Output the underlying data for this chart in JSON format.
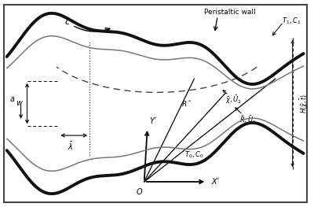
{
  "fig_width": 4.0,
  "fig_height": 2.63,
  "dpi": 100,
  "bg_color": "#e8e8e8",
  "wall_color": "#111111",
  "inner_wall_color": "#777777",
  "arc_color": "#555555",
  "axis_color": "#333333"
}
